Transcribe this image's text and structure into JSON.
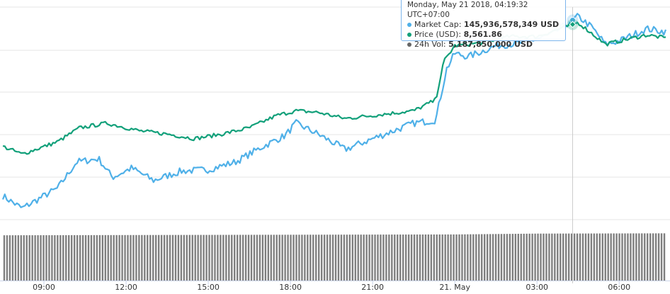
{
  "colors": {
    "market_cap": "#4fb0e8",
    "price": "#12a07a",
    "volume": "#7f7f7f",
    "grid": "#e6e6e6",
    "axis_text": "#333333"
  },
  "tooltip": {
    "date": "Monday, May 21 2018, 04:19:32 UTC+07:00",
    "rows": [
      {
        "label": "Market Cap:",
        "value": "145,936,578,349 USD"
      },
      {
        "label": "Price (USD):",
        "value": "8,561.86"
      },
      {
        "label": "24h Vol:",
        "value": "5,187,850,000 USD"
      }
    ]
  },
  "chart_data": {
    "type": "line",
    "x_tick_labels": [
      "09:00",
      "12:00",
      "15:00",
      "18:00",
      "21:00",
      "21. May",
      "03:00",
      "06:00"
    ],
    "x_range_hours": [
      7.5,
      31.7
    ],
    "x_tick_hours": [
      9,
      12,
      15,
      18,
      21,
      24,
      27,
      30
    ],
    "grid": true,
    "series": [
      {
        "name": "Market Cap",
        "keypoints": [
          [
            7.5,
            0.08
          ],
          [
            8.2,
            0.0
          ],
          [
            9.5,
            0.13
          ],
          [
            10.2,
            0.3
          ],
          [
            11.0,
            0.32
          ],
          [
            11.5,
            0.2
          ],
          [
            12.2,
            0.26
          ],
          [
            13.0,
            0.18
          ],
          [
            14.0,
            0.24
          ],
          [
            15.0,
            0.25
          ],
          [
            16.0,
            0.3
          ],
          [
            17.0,
            0.4
          ],
          [
            17.8,
            0.47
          ],
          [
            18.2,
            0.55
          ],
          [
            19.0,
            0.48
          ],
          [
            20.0,
            0.38
          ],
          [
            21.0,
            0.45
          ],
          [
            22.5,
            0.55
          ],
          [
            23.3,
            0.57
          ],
          [
            23.7,
            0.9
          ],
          [
            24.0,
            1.0
          ],
          [
            24.5,
            0.98
          ],
          [
            25.5,
            1.05
          ],
          [
            26.5,
            1.07
          ],
          [
            27.5,
            1.12
          ],
          [
            28.0,
            1.18
          ],
          [
            28.5,
            1.24
          ],
          [
            29.0,
            1.17
          ],
          [
            29.5,
            1.06
          ],
          [
            30.0,
            1.08
          ],
          [
            31.0,
            1.16
          ],
          [
            31.7,
            1.14
          ]
        ]
      },
      {
        "name": "Price (USD)",
        "keypoints": [
          [
            7.5,
            0.4
          ],
          [
            8.2,
            0.35
          ],
          [
            9.5,
            0.43
          ],
          [
            10.3,
            0.52
          ],
          [
            11.3,
            0.55
          ],
          [
            12.5,
            0.5
          ],
          [
            13.5,
            0.48
          ],
          [
            14.5,
            0.45
          ],
          [
            15.5,
            0.48
          ],
          [
            16.5,
            0.52
          ],
          [
            17.5,
            0.6
          ],
          [
            18.2,
            0.63
          ],
          [
            19.0,
            0.62
          ],
          [
            20.0,
            0.58
          ],
          [
            21.0,
            0.6
          ],
          [
            22.5,
            0.63
          ],
          [
            23.3,
            0.7
          ],
          [
            23.6,
            0.95
          ],
          [
            24.0,
            1.05
          ],
          [
            25.0,
            1.07
          ],
          [
            26.0,
            1.11
          ],
          [
            27.0,
            1.11
          ],
          [
            27.5,
            1.14
          ],
          [
            28.0,
            1.17
          ],
          [
            28.5,
            1.2
          ],
          [
            29.0,
            1.13
          ],
          [
            29.5,
            1.06
          ],
          [
            30.0,
            1.08
          ],
          [
            31.0,
            1.12
          ],
          [
            31.7,
            1.1
          ]
        ]
      },
      {
        "name": "24h Vol",
        "keypoints": [
          [
            7.5,
            0.4
          ],
          [
            24.0,
            0.55
          ],
          [
            27.0,
            0.7
          ],
          [
            31.7,
            0.75
          ]
        ]
      }
    ]
  }
}
